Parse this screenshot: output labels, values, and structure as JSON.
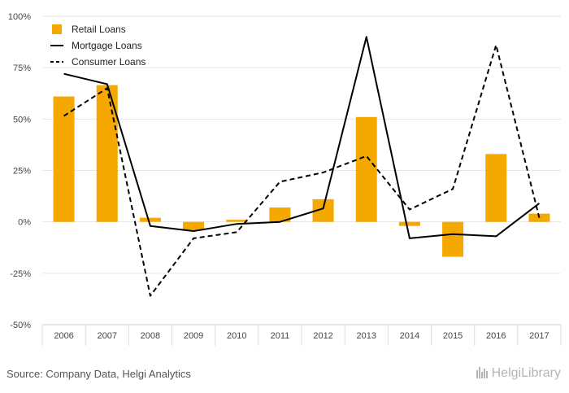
{
  "chart_data": {
    "type": "bar+line",
    "categories": [
      "2006",
      "2007",
      "2008",
      "2009",
      "2010",
      "2011",
      "2012",
      "2013",
      "2014",
      "2015",
      "2016",
      "2017"
    ],
    "series": [
      {
        "name": "Retail Loans",
        "kind": "bar",
        "color": "#f5a800",
        "values": [
          61,
          66.5,
          2,
          -4,
          1,
          7,
          11,
          51,
          -2,
          -17,
          33,
          4
        ]
      },
      {
        "name": "Mortgage Loans",
        "kind": "line",
        "style": "solid",
        "color": "#000000",
        "values": [
          72,
          67,
          -2,
          -4.5,
          -1,
          0,
          6.5,
          90,
          -8,
          -6,
          -7,
          9
        ]
      },
      {
        "name": "Consumer Loans",
        "kind": "line",
        "style": "dashed",
        "color": "#000000",
        "values": [
          51.5,
          65,
          -36,
          -8,
          -5,
          19.5,
          24,
          32,
          6,
          16,
          86,
          2
        ]
      }
    ],
    "yticks": [
      "100%",
      "75%",
      "50%",
      "25%",
      "0%",
      "-25%",
      "-50%"
    ],
    "ytick_values": [
      100,
      75,
      50,
      25,
      0,
      -25,
      -50
    ],
    "ylim": [
      -50,
      100
    ],
    "legend_position": "top-left",
    "grid": true
  },
  "footer": {
    "source": "Source: Company Data, Helgi Analytics",
    "logo": "HelgiLibrary"
  }
}
